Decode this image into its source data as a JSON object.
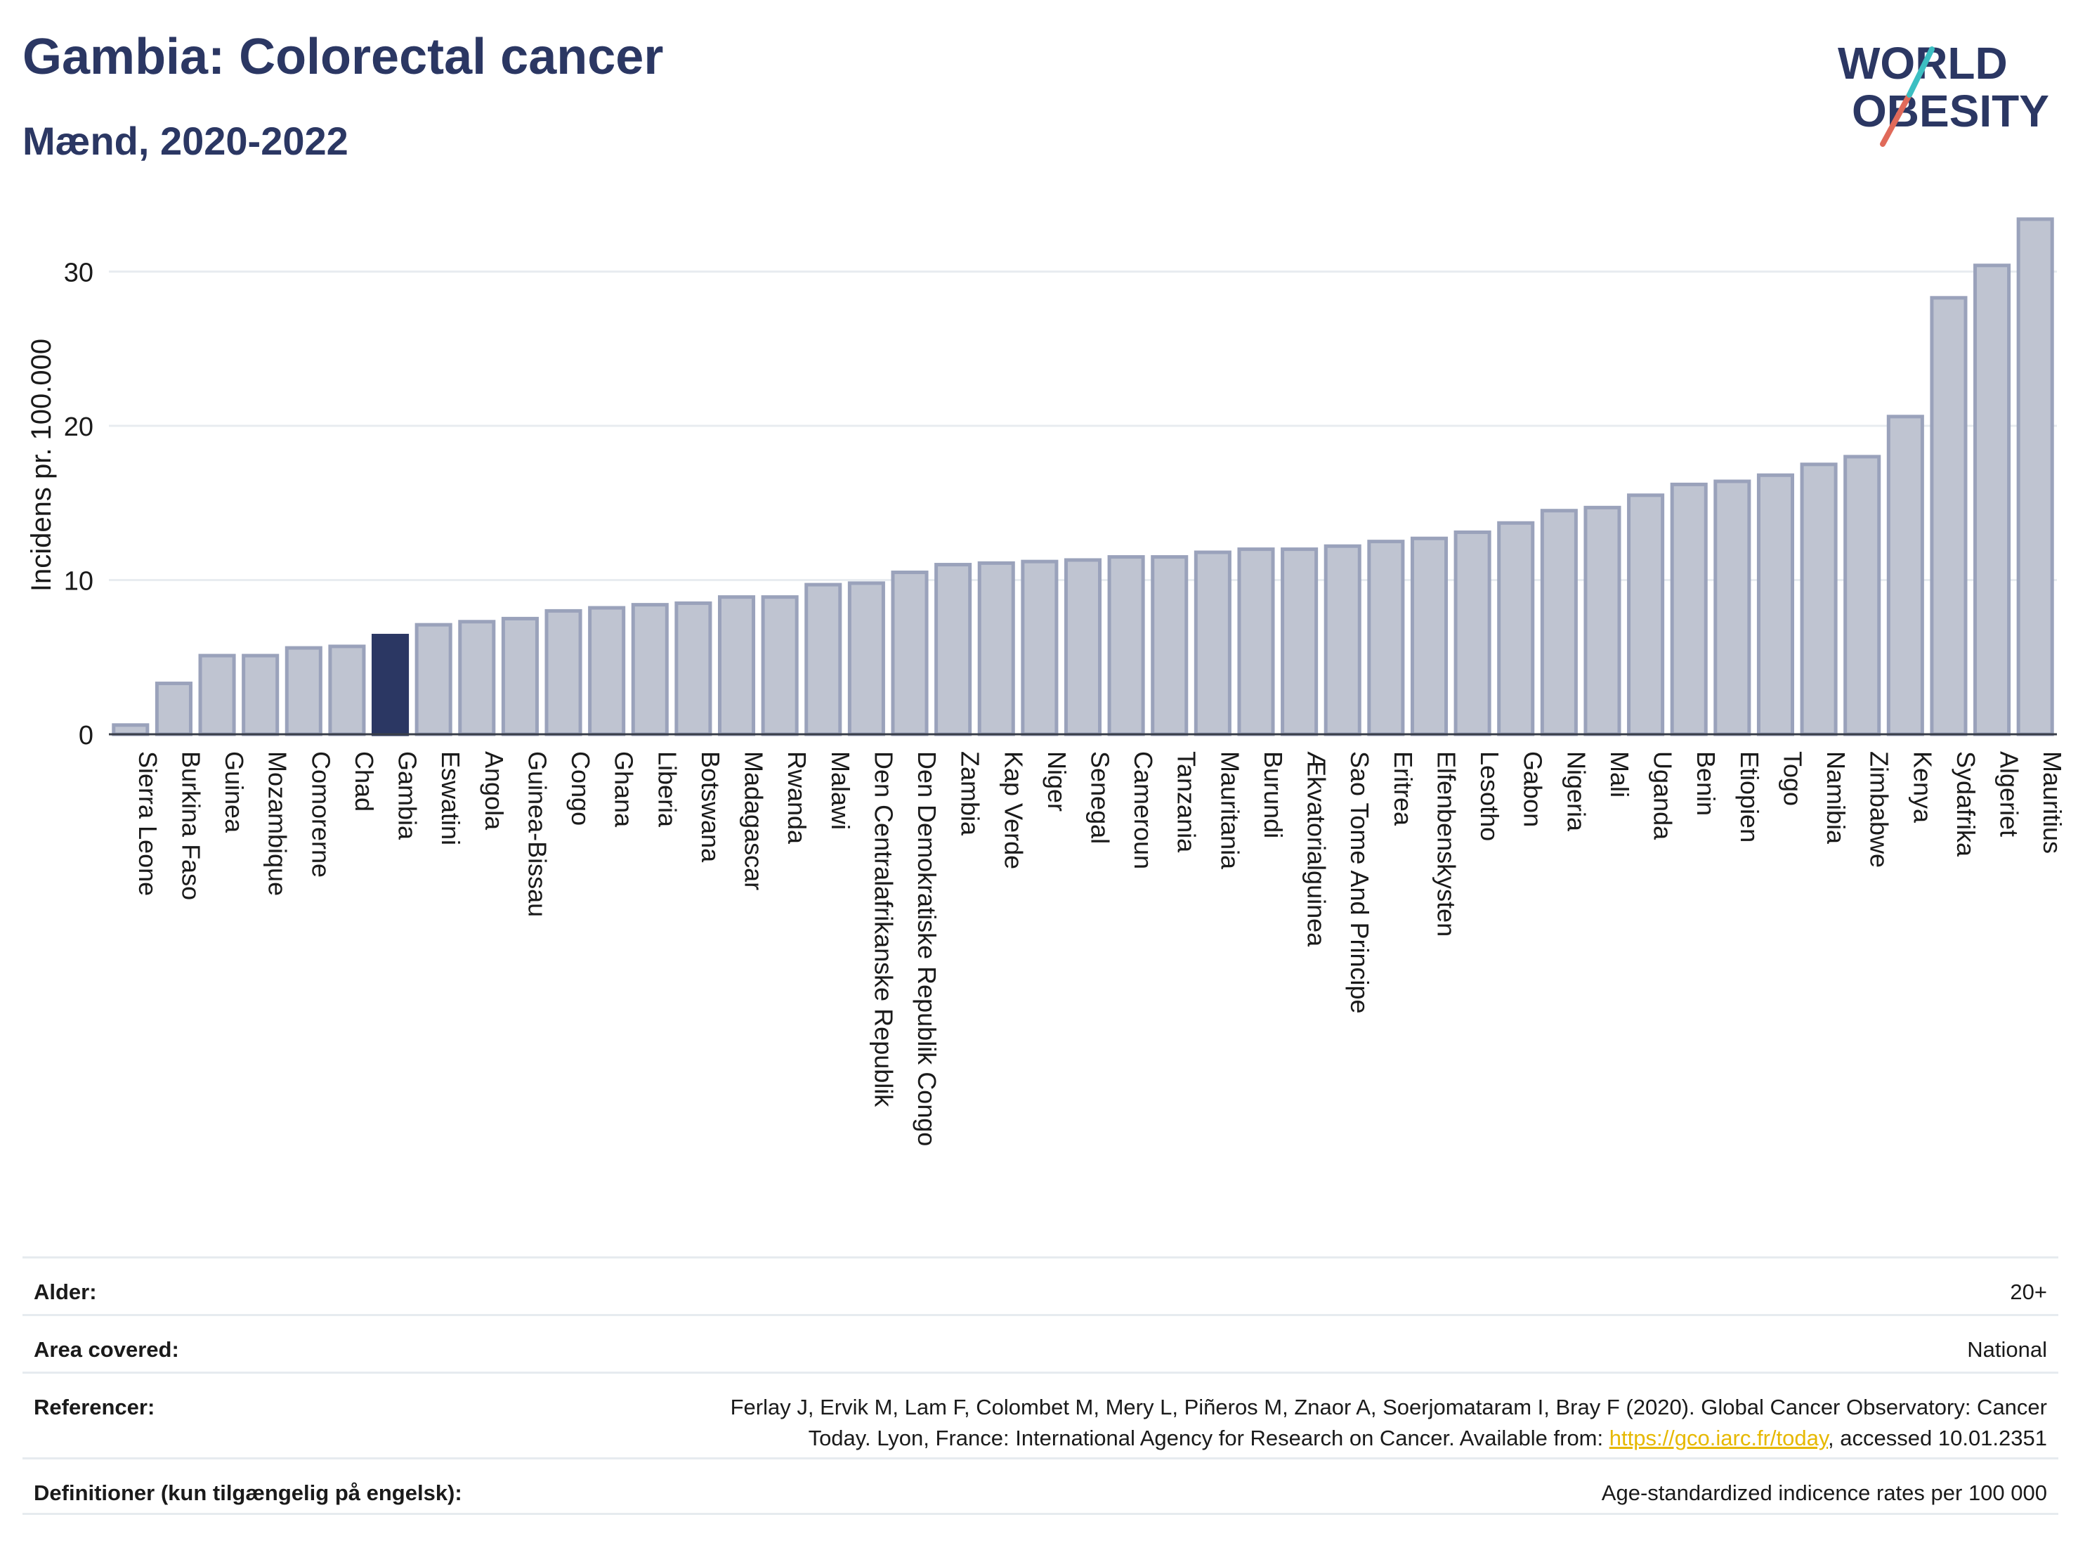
{
  "header": {
    "title": "Gambia: Colorectal cancer",
    "subtitle": "Mænd, 2020-2022"
  },
  "logo": {
    "line1": "WORLD",
    "line2": "OBESITY",
    "colors": {
      "text": "#2b3763",
      "teal": "#3cbfc2",
      "coral": "#e06a5a"
    }
  },
  "chart_data": {
    "type": "bar",
    "title": "Gambia: Colorectal cancer",
    "subtitle": "Mænd, 2020-2022",
    "ylabel": "Incidens pr. 100.000",
    "xlabel": "",
    "ylim": [
      0,
      34
    ],
    "yticks": [
      0,
      10,
      20,
      30
    ],
    "grid": true,
    "highlight": "Gambia",
    "colors": {
      "bar": "#bfc4d1",
      "bar_edge": "#9aa2bb",
      "highlight": "#2b3763",
      "grid": "#e8ecf0",
      "axis": "#3a3f4a"
    },
    "categories": [
      "Sierra Leone",
      "Burkina Faso",
      "Guinea",
      "Mozambique",
      "Comorerne",
      "Chad",
      "Gambia",
      "Eswatini",
      "Angola",
      "Guinea-Bissau",
      "Congo",
      "Ghana",
      "Liberia",
      "Botswana",
      "Madagascar",
      "Rwanda",
      "Malawi",
      "Den Centralafrikanske Republik",
      "Den Demokratiske Republik Congo",
      "Zambia",
      "Kap Verde",
      "Niger",
      "Senegal",
      "Cameroun",
      "Tanzania",
      "Mauritania",
      "Burundi",
      "Ækvatorialguinea",
      "Sao Tome And Principe",
      "Eritrea",
      "Elfenbenskysten",
      "Lesotho",
      "Gabon",
      "Nigeria",
      "Mali",
      "Uganda",
      "Benin",
      "Etiopien",
      "Togo",
      "Namibia",
      "Zimbabwe",
      "Kenya",
      "Sydafrika",
      "Algeriet",
      "Mauritius"
    ],
    "values": [
      0.6,
      3.3,
      5.1,
      5.1,
      5.6,
      5.7,
      6.4,
      7.1,
      7.3,
      7.5,
      8.0,
      8.2,
      8.4,
      8.5,
      8.9,
      8.9,
      9.7,
      9.8,
      10.5,
      11.0,
      11.1,
      11.2,
      11.3,
      11.5,
      11.5,
      11.8,
      12.0,
      12.0,
      12.2,
      12.5,
      12.7,
      13.1,
      13.7,
      14.5,
      14.7,
      15.5,
      16.2,
      16.4,
      16.8,
      17.5,
      18.0,
      20.6,
      28.3,
      30.4,
      33.4
    ]
  },
  "info": {
    "age_label": "Alder:",
    "age_value": "20+",
    "area_label": "Area covered:",
    "area_value": "National",
    "ref_label": "Referencer:",
    "ref_line1": "Ferlay J, Ervik M, Lam F, Colombet M, Mery L, Piñeros M, Znaor A, Soerjomataram I, Bray F (2020). Global Cancer Observatory: Cancer",
    "ref_line2_pre": "Today. Lyon, France: International Agency for Research on Cancer. Available from: ",
    "ref_link": "https://gco.iarc.fr/today",
    "ref_line2_post": ", accessed 10.01.2351",
    "def_label": "Definitioner (kun tilgængelig på engelsk):",
    "def_value": "Age-standardized indicence rates per 100 000"
  }
}
